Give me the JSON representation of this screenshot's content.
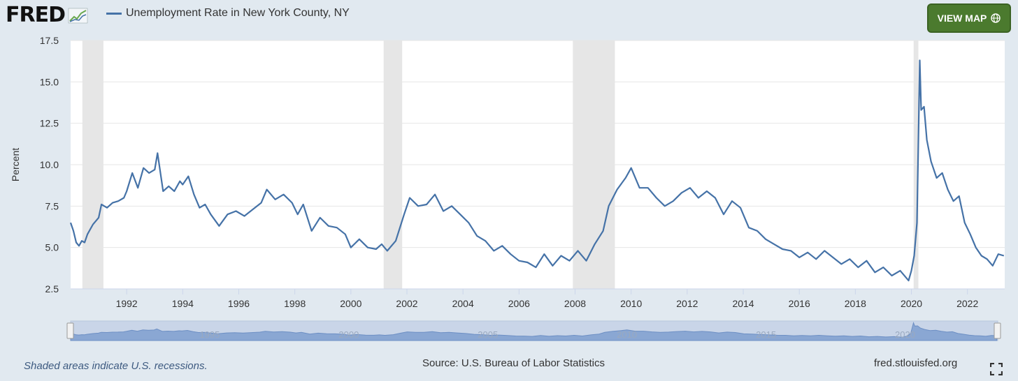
{
  "header": {
    "logo": "FRED",
    "series_label": "Unemployment Rate in New York County, NY",
    "view_map_label": "VIEW MAP",
    "view_map_icon": "globe-icon",
    "series_color": "#4572a7",
    "button_color": "#4b7a2e"
  },
  "chart_data": {
    "type": "line",
    "ylabel": "Percent",
    "ylim": [
      2.5,
      17.5
    ],
    "xlim": [
      1990.0,
      2023.33
    ],
    "yticks": [
      "2.5",
      "5.0",
      "7.5",
      "10.0",
      "12.5",
      "15.0",
      "17.5"
    ],
    "xticks": [
      "1992",
      "1994",
      "1996",
      "1998",
      "2000",
      "2002",
      "2004",
      "2006",
      "2008",
      "2010",
      "2012",
      "2014",
      "2016",
      "2018",
      "2020",
      "2022"
    ],
    "navigator_labels": [
      "1995",
      "2000",
      "2005",
      "2010",
      "2015",
      "2020"
    ],
    "recessions": [
      [
        1990.42,
        1991.17
      ],
      [
        2001.17,
        2001.83
      ],
      [
        2007.92,
        2009.42
      ],
      [
        2020.08,
        2020.25
      ]
    ],
    "grid": true,
    "legend": "top-left",
    "series": [
      {
        "name": "Unemployment Rate in New York County, NY",
        "x": [
          1990.0,
          1990.1,
          1990.2,
          1990.3,
          1990.4,
          1990.5,
          1990.6,
          1990.8,
          1991.0,
          1991.1,
          1991.3,
          1991.5,
          1991.7,
          1991.9,
          1992.0,
          1992.2,
          1992.4,
          1992.6,
          1992.8,
          1993.0,
          1993.1,
          1993.3,
          1993.5,
          1993.7,
          1993.9,
          1994.0,
          1994.2,
          1994.4,
          1994.6,
          1994.8,
          1995.0,
          1995.3,
          1995.6,
          1995.9,
          1996.2,
          1996.5,
          1996.8,
          1997.0,
          1997.3,
          1997.6,
          1997.9,
          1998.1,
          1998.3,
          1998.6,
          1998.9,
          1999.2,
          1999.5,
          1999.8,
          2000.0,
          2000.3,
          2000.6,
          2000.9,
          2001.1,
          2001.3,
          2001.6,
          2001.9,
          2002.1,
          2002.4,
          2002.7,
          2003.0,
          2003.3,
          2003.6,
          2003.9,
          2004.2,
          2004.5,
          2004.8,
          2005.1,
          2005.4,
          2005.7,
          2006.0,
          2006.3,
          2006.6,
          2006.9,
          2007.2,
          2007.5,
          2007.8,
          2008.1,
          2008.4,
          2008.7,
          2009.0,
          2009.2,
          2009.5,
          2009.8,
          2010.0,
          2010.3,
          2010.6,
          2010.9,
          2011.2,
          2011.5,
          2011.8,
          2012.1,
          2012.4,
          2012.7,
          2013.0,
          2013.3,
          2013.6,
          2013.9,
          2014.2,
          2014.5,
          2014.8,
          2015.1,
          2015.4,
          2015.7,
          2016.0,
          2016.3,
          2016.6,
          2016.9,
          2017.2,
          2017.5,
          2017.8,
          2018.1,
          2018.4,
          2018.7,
          2019.0,
          2019.3,
          2019.6,
          2019.9,
          2020.0,
          2020.1,
          2020.2,
          2020.3,
          2020.35,
          2020.45,
          2020.55,
          2020.7,
          2020.9,
          2021.1,
          2021.3,
          2021.5,
          2021.7,
          2021.9,
          2022.1,
          2022.3,
          2022.5,
          2022.7,
          2022.9,
          2023.1,
          2023.3
        ],
        "values": [
          6.5,
          6.0,
          5.3,
          5.1,
          5.4,
          5.3,
          5.8,
          6.4,
          6.8,
          7.6,
          7.4,
          7.7,
          7.8,
          8.0,
          8.4,
          9.5,
          8.6,
          9.8,
          9.5,
          9.7,
          10.7,
          8.4,
          8.7,
          8.4,
          9.0,
          8.8,
          9.3,
          8.2,
          7.4,
          7.6,
          7.0,
          6.3,
          7.0,
          7.2,
          6.9,
          7.3,
          7.7,
          8.5,
          7.9,
          8.2,
          7.7,
          7.0,
          7.6,
          6.0,
          6.8,
          6.3,
          6.2,
          5.8,
          5.0,
          5.5,
          5.0,
          4.9,
          5.2,
          4.8,
          5.4,
          7.0,
          8.0,
          7.5,
          7.6,
          8.2,
          7.2,
          7.5,
          7.0,
          6.5,
          5.7,
          5.4,
          4.8,
          5.1,
          4.6,
          4.2,
          4.1,
          3.8,
          4.6,
          3.9,
          4.5,
          4.2,
          4.8,
          4.2,
          5.2,
          6.0,
          7.5,
          8.5,
          9.2,
          9.8,
          8.6,
          8.6,
          8.0,
          7.5,
          7.8,
          8.3,
          8.6,
          8.0,
          8.4,
          8.0,
          7.0,
          7.8,
          7.4,
          6.2,
          6.0,
          5.5,
          5.2,
          4.9,
          4.8,
          4.4,
          4.7,
          4.3,
          4.8,
          4.4,
          4.0,
          4.3,
          3.8,
          4.2,
          3.5,
          3.8,
          3.3,
          3.6,
          3.0,
          3.6,
          4.5,
          6.5,
          16.3,
          13.3,
          13.5,
          11.5,
          10.2,
          9.2,
          9.5,
          8.5,
          7.8,
          8.1,
          6.5,
          5.8,
          5.0,
          4.5,
          4.3,
          3.9,
          4.6,
          4.5
        ]
      }
    ]
  },
  "footer": {
    "recession_note": "Shaded areas indicate U.S. recessions.",
    "source": "Source: U.S. Bureau of Labor Statistics",
    "url": "fred.stlouisfed.org",
    "fullscreen_icon": "fullscreen-icon"
  }
}
